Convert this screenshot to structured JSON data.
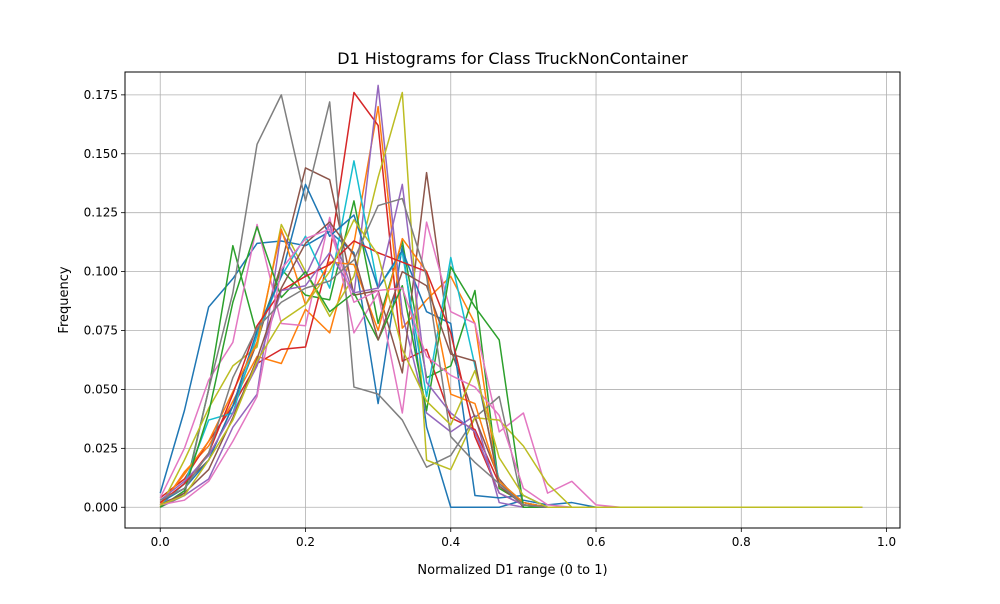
{
  "chart_data": {
    "type": "line",
    "title": "D1 Histograms for Class TruckNonContainer",
    "xlabel": "Normalized D1 range (0 to 1)",
    "ylabel": "Frequency",
    "xlim": [
      -0.0485,
      1.0185
    ],
    "ylim": [
      -0.0088,
      0.1847
    ],
    "xticks": [
      0.0,
      0.2,
      0.4,
      0.6,
      0.8,
      1.0
    ],
    "xtick_labels": [
      "0.0",
      "0.2",
      "0.4",
      "0.6",
      "0.8",
      "1.0"
    ],
    "yticks": [
      0.0,
      0.025,
      0.05,
      0.075,
      0.1,
      0.125,
      0.15,
      0.175
    ],
    "ytick_labels": [
      "0.000",
      "0.025",
      "0.050",
      "0.075",
      "0.100",
      "0.125",
      "0.150",
      "0.175"
    ],
    "grid": true,
    "x": [
      0.0,
      0.0333,
      0.0667,
      0.1,
      0.1333,
      0.1667,
      0.2,
      0.2333,
      0.2667,
      0.3,
      0.3333,
      0.3667,
      0.4,
      0.4333,
      0.4667,
      0.5,
      0.5333,
      0.5667,
      0.6,
      0.6333,
      0.6667,
      0.7,
      0.7333,
      0.7667,
      0.8,
      0.8333,
      0.8667,
      0.9,
      0.9333,
      0.9667
    ],
    "series": [
      {
        "color": "#1f77b4",
        "values": [
          0.006,
          0.041,
          0.085,
          0.097,
          0.112,
          0.113,
          0.111,
          0.117,
          0.108,
          0.044,
          0.111,
          0.034,
          0.0,
          0.0,
          0.0,
          0.003,
          0.001,
          0.002,
          0.0,
          0,
          0,
          0,
          0,
          0,
          0,
          0,
          0,
          0,
          0,
          0
        ]
      },
      {
        "color": "#ff7f0e",
        "values": [
          0.0,
          0.015,
          0.026,
          0.045,
          0.064,
          0.061,
          0.084,
          0.074,
          0.112,
          0.17,
          0.076,
          0.088,
          0.098,
          0.078,
          0.008,
          0.002,
          0.0,
          0.0,
          0.0,
          0,
          0,
          0,
          0,
          0,
          0,
          0,
          0,
          0,
          0,
          0
        ]
      },
      {
        "color": "#2ca02c",
        "values": [
          0.0,
          0.006,
          0.05,
          0.111,
          0.073,
          0.101,
          0.09,
          0.088,
          0.13,
          0.078,
          0.113,
          0.055,
          0.06,
          0.092,
          0.008,
          0.002,
          0.0,
          0.0,
          0.0,
          0,
          0,
          0,
          0,
          0,
          0,
          0,
          0,
          0,
          0,
          0
        ]
      },
      {
        "color": "#d62728",
        "values": [
          0.004,
          0.012,
          0.028,
          0.043,
          0.061,
          0.067,
          0.068,
          0.107,
          0.176,
          0.162,
          0.062,
          0.067,
          0.038,
          0.033,
          0.01,
          0.002,
          0.0,
          0.0,
          0.0,
          0,
          0,
          0,
          0,
          0,
          0,
          0,
          0,
          0,
          0,
          0
        ]
      },
      {
        "color": "#9467bd",
        "values": [
          0.002,
          0.005,
          0.012,
          0.034,
          0.048,
          0.117,
          0.098,
          0.12,
          0.09,
          0.179,
          0.082,
          0.04,
          0.032,
          0.039,
          0.002,
          0.0,
          0.0,
          0.0,
          0.0,
          0,
          0,
          0,
          0,
          0,
          0,
          0,
          0,
          0,
          0,
          0
        ]
      },
      {
        "color": "#8c564b",
        "values": [
          0.001,
          0.01,
          0.02,
          0.043,
          0.07,
          0.103,
          0.144,
          0.139,
          0.09,
          0.092,
          0.057,
          0.142,
          0.067,
          0.038,
          0.012,
          0.0,
          0.0,
          0.0,
          0.0,
          0,
          0,
          0,
          0,
          0,
          0,
          0,
          0,
          0,
          0,
          0
        ]
      },
      {
        "color": "#e377c2",
        "values": [
          0.004,
          0.025,
          0.054,
          0.07,
          0.12,
          0.078,
          0.077,
          0.123,
          0.074,
          0.091,
          0.04,
          0.121,
          0.083,
          0.078,
          0.032,
          0.04,
          0.006,
          0.011,
          0.001,
          0,
          0,
          0,
          0,
          0,
          0,
          0,
          0,
          0,
          0,
          0
        ]
      },
      {
        "color": "#7f7f7f",
        "values": [
          0.0,
          0.005,
          0.05,
          0.091,
          0.154,
          0.175,
          0.13,
          0.172,
          0.051,
          0.048,
          0.037,
          0.017,
          0.022,
          0.038,
          0.047,
          0.0,
          0.0,
          0.0,
          0.0,
          0,
          0,
          0,
          0,
          0,
          0,
          0,
          0,
          0,
          0,
          0
        ]
      },
      {
        "color": "#bcbd22",
        "values": [
          0.0,
          0.02,
          0.042,
          0.06,
          0.068,
          0.12,
          0.1,
          0.081,
          0.098,
          0.14,
          0.176,
          0.02,
          0.016,
          0.038,
          0.037,
          0.026,
          0.01,
          0.0,
          0.0,
          0,
          0,
          0,
          0,
          0,
          0,
          0,
          0,
          0,
          0,
          0
        ]
      },
      {
        "color": "#17becf",
        "values": [
          0.001,
          0.01,
          0.037,
          0.04,
          0.073,
          0.098,
          0.115,
          0.093,
          0.147,
          0.093,
          0.108,
          0.047,
          0.106,
          0.06,
          0.011,
          0.002,
          0.0,
          0.0,
          0.0,
          0,
          0,
          0,
          0,
          0,
          0,
          0,
          0,
          0,
          0,
          0
        ]
      },
      {
        "color": "#1f77b4",
        "values": [
          0.002,
          0.008,
          0.02,
          0.043,
          0.075,
          0.098,
          0.137,
          0.115,
          0.124,
          0.093,
          0.109,
          0.083,
          0.078,
          0.005,
          0.004,
          0.005,
          0.0,
          0.0,
          0.0,
          0,
          0,
          0,
          0,
          0,
          0,
          0,
          0,
          0,
          0,
          0
        ]
      },
      {
        "color": "#ff7f0e",
        "values": [
          0.001,
          0.014,
          0.028,
          0.049,
          0.07,
          0.118,
          0.086,
          0.104,
          0.103,
          0.075,
          0.114,
          0.1,
          0.048,
          0.044,
          0.011,
          0.002,
          0.0,
          0.0,
          0.0,
          0,
          0,
          0,
          0,
          0,
          0,
          0,
          0,
          0,
          0,
          0
        ]
      },
      {
        "color": "#2ca02c",
        "values": [
          0.0,
          0.007,
          0.04,
          0.087,
          0.119,
          0.089,
          0.1,
          0.083,
          0.091,
          0.071,
          0.094,
          0.041,
          0.102,
          0.085,
          0.071,
          0.0,
          0.0,
          0.0,
          0.0,
          0,
          0,
          0,
          0,
          0,
          0,
          0,
          0,
          0,
          0,
          0
        ]
      },
      {
        "color": "#d62728",
        "values": [
          0.002,
          0.01,
          0.023,
          0.048,
          0.077,
          0.092,
          0.098,
          0.103,
          0.113,
          0.108,
          0.104,
          0.1,
          0.074,
          0.03,
          0.006,
          0.001,
          0.0,
          0.0,
          0.0,
          0,
          0,
          0,
          0,
          0,
          0,
          0,
          0,
          0,
          0,
          0
        ]
      },
      {
        "color": "#9467bd",
        "values": [
          0.003,
          0.011,
          0.022,
          0.04,
          0.06,
          0.092,
          0.094,
          0.108,
          0.091,
          0.093,
          0.137,
          0.053,
          0.04,
          0.032,
          0.006,
          0.001,
          0.0,
          0.0,
          0.0,
          0,
          0,
          0,
          0,
          0,
          0,
          0,
          0,
          0,
          0,
          0
        ]
      },
      {
        "color": "#8c564b",
        "values": [
          0.001,
          0.006,
          0.016,
          0.038,
          0.063,
          0.093,
          0.112,
          0.121,
          0.107,
          0.071,
          0.1,
          0.094,
          0.065,
          0.062,
          0.009,
          0.001,
          0.0,
          0.0,
          0.0,
          0,
          0,
          0,
          0,
          0,
          0,
          0,
          0,
          0,
          0,
          0
        ]
      },
      {
        "color": "#e377c2",
        "values": [
          0.001,
          0.003,
          0.011,
          0.028,
          0.047,
          0.101,
          0.114,
          0.118,
          0.087,
          0.092,
          0.093,
          0.064,
          0.056,
          0.051,
          0.039,
          0.008,
          0.001,
          0.0,
          0.0,
          0,
          0,
          0,
          0,
          0,
          0,
          0,
          0,
          0,
          0,
          0
        ]
      },
      {
        "color": "#7f7f7f",
        "values": [
          0.003,
          0.008,
          0.023,
          0.055,
          0.076,
          0.087,
          0.093,
          0.096,
          0.105,
          0.128,
          0.131,
          0.098,
          0.03,
          0.019,
          0.01,
          0.001,
          0.0,
          0.0,
          0.0,
          0,
          0,
          0,
          0,
          0,
          0,
          0,
          0,
          0,
          0,
          0
        ]
      },
      {
        "color": "#bcbd22",
        "values": [
          0.001,
          0.005,
          0.02,
          0.037,
          0.062,
          0.079,
          0.086,
          0.1,
          0.122,
          0.107,
          0.067,
          0.045,
          0.035,
          0.058,
          0.021,
          0.005,
          0.0,
          0.0,
          0.0,
          0,
          0,
          0,
          0,
          0,
          0,
          0,
          0,
          0,
          0,
          0
        ]
      }
    ]
  }
}
